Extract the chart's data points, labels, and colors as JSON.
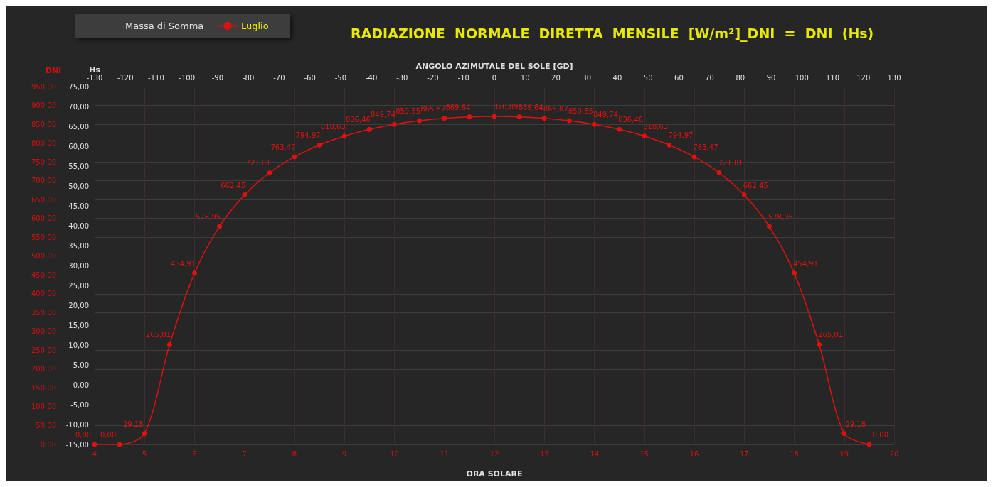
{
  "chart_data": {
    "type": "line",
    "title": "RADIAZIONE  NORMALE  DIRETTA  MENSILE  [W/m²]_DNI  =  DNI  (Hs)",
    "legend_title": "Massa di Somma",
    "xlabel": "ORA SOLARE",
    "ylabel": "DNI",
    "y2label": "Hs",
    "x2label": "ANGOLO AZIMUTALE DEL SOLE [GD]",
    "x": [
      4,
      4.5,
      5,
      5.5,
      6,
      6.5,
      7,
      7.5,
      8,
      8.5,
      9,
      9.5,
      10,
      10.5,
      11,
      11.5,
      12,
      12.5,
      13,
      13.5,
      14,
      14.5,
      15,
      15.5,
      16,
      16.5,
      17,
      17.5,
      18,
      18.5,
      19,
      19.5
    ],
    "series": [
      {
        "name": "Luglio",
        "color": "#e01010",
        "values": [
          0,
          0,
          29.18,
          265.01,
          454.91,
          578.95,
          662.45,
          721.01,
          763.47,
          794.97,
          818.63,
          836.46,
          849.74,
          859.55,
          865.87,
          869.64,
          870.89,
          869.64,
          865.87,
          859.55,
          849.74,
          836.46,
          818.63,
          794.97,
          763.47,
          721.01,
          662.45,
          578.95,
          454.91,
          265.01,
          29.18,
          0
        ],
        "value_labels": [
          "0,00",
          "0,00",
          "29,18",
          "265,01",
          "454,91",
          "578,95",
          "662,45",
          "721,01",
          "763,47",
          "794,97",
          "818,63",
          "836,46",
          "849,74",
          "859,55",
          "865,87",
          "869,64",
          "870,89",
          "869,64",
          "865,87",
          "859,55",
          "849,74",
          "836,46",
          "818,63",
          "794,97",
          "763,47",
          "721,01",
          "662,45",
          "578,95",
          "454,91",
          "265,01",
          "29,18",
          "0,00"
        ]
      }
    ],
    "xlim": [
      4,
      20
    ],
    "xticks": [
      4,
      5,
      6,
      7,
      8,
      9,
      10,
      11,
      12,
      13,
      14,
      15,
      16,
      17,
      18,
      19,
      20
    ],
    "x2lim": [
      -130,
      130
    ],
    "x2ticks": [
      -130,
      -120,
      -110,
      -100,
      -90,
      -80,
      -70,
      -60,
      -50,
      -40,
      -30,
      -20,
      -10,
      0,
      10,
      20,
      30,
      40,
      50,
      60,
      70,
      80,
      90,
      100,
      110,
      120,
      130
    ],
    "ylim": [
      0,
      950
    ],
    "yticks": [
      {
        "value": 0,
        "label": "0,00"
      },
      {
        "value": 50,
        "label": "50,00"
      },
      {
        "value": 100,
        "label": "100,00"
      },
      {
        "value": 150,
        "label": "150,00"
      },
      {
        "value": 200,
        "label": "200,00"
      },
      {
        "value": 250,
        "label": "250,00"
      },
      {
        "value": 300,
        "label": "300,00"
      },
      {
        "value": 350,
        "label": "350,00"
      },
      {
        "value": 400,
        "label": "400,00"
      },
      {
        "value": 450,
        "label": "450,00"
      },
      {
        "value": 500,
        "label": "500,00"
      },
      {
        "value": 550,
        "label": "550,00"
      },
      {
        "value": 600,
        "label": "600,00"
      },
      {
        "value": 650,
        "label": "650,00"
      },
      {
        "value": 700,
        "label": "700,00"
      },
      {
        "value": 750,
        "label": "750,00"
      },
      {
        "value": 800,
        "label": "800,00"
      },
      {
        "value": 850,
        "label": "850,00"
      },
      {
        "value": 900,
        "label": "900,00"
      },
      {
        "value": 950,
        "label": "950,00"
      }
    ],
    "y2lim": [
      -15,
      75
    ],
    "y2ticks": [
      {
        "value": -15,
        "label": "-15,00"
      },
      {
        "value": -10,
        "label": "-10,00"
      },
      {
        "value": -5,
        "label": "-5,00"
      },
      {
        "value": 0,
        "label": "0,00"
      },
      {
        "value": 5,
        "label": "5,00"
      },
      {
        "value": 10,
        "label": "10,00"
      },
      {
        "value": 15,
        "label": "15,00"
      },
      {
        "value": 20,
        "label": "20,00"
      },
      {
        "value": 25,
        "label": "25,00"
      },
      {
        "value": 30,
        "label": "30,00"
      },
      {
        "value": 35,
        "label": "35,00"
      },
      {
        "value": 40,
        "label": "40,00"
      },
      {
        "value": 45,
        "label": "45,00"
      },
      {
        "value": 50,
        "label": "50,00"
      },
      {
        "value": 55,
        "label": "55,00"
      },
      {
        "value": 60,
        "label": "60,00"
      },
      {
        "value": 65,
        "label": "65,00"
      },
      {
        "value": 70,
        "label": "70,00"
      },
      {
        "value": 75,
        "label": "75,00"
      }
    ],
    "grid": true,
    "legend": "top left",
    "marker": "circle",
    "line_style": "solid"
  }
}
